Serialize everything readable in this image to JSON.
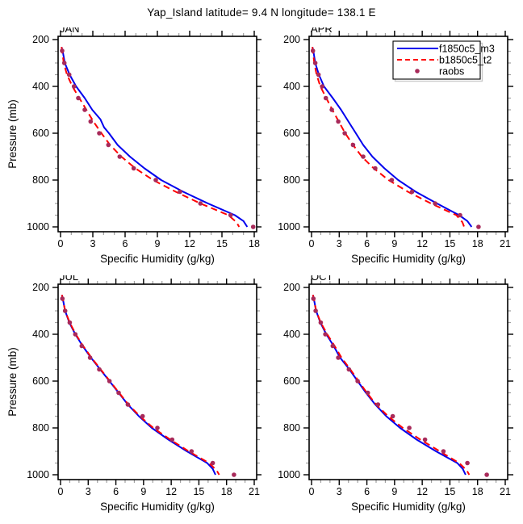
{
  "title": "Yap_Island  latitude= 9.4 N longitude= 138.1 E",
  "colors": {
    "model1": "#0000ee",
    "model2": "#ff0000",
    "obs": "#a82a5a",
    "axis": "#000000",
    "minor_tick": "#a0a0a0",
    "legend_shadow": "#c9c9c9",
    "background": "#ffffff"
  },
  "axes": {
    "xlabel": "Specific Humidity (g/kg)",
    "ylabel": "Pressure (mb)",
    "ylim": [
      200,
      1000
    ],
    "y_inverted": true,
    "yticks": [
      200,
      400,
      600,
      800,
      1000
    ],
    "yminor_step": 50,
    "grid": "off"
  },
  "legend": {
    "panel": "APR",
    "position": "top-right",
    "entries": [
      {
        "label": "f1850c5_m3",
        "style": "solid",
        "color": "#0000ee"
      },
      {
        "label": "b1850c5_t2",
        "style": "dashed",
        "color": "#ff0000"
      },
      {
        "label": "raobs",
        "style": "marker",
        "color": "#a82a5a"
      }
    ]
  },
  "chart_data": [
    {
      "type": "line",
      "month": "JAN",
      "xlim": [
        0,
        18
      ],
      "xticks": [
        0,
        3,
        6,
        9,
        12,
        15,
        18
      ],
      "xminor_step": 1,
      "series": [
        {
          "name": "f1850c5_m3",
          "style": "solid",
          "color": "#0000ee",
          "points": [
            [
              0.1,
              232
            ],
            [
              0.2,
              250
            ],
            [
              0.4,
              300
            ],
            [
              0.85,
              350
            ],
            [
              1.45,
              400
            ],
            [
              2.25,
              450
            ],
            [
              2.95,
              500
            ],
            [
              3.7,
              540
            ],
            [
              4.05,
              575
            ],
            [
              4.5,
              600
            ],
            [
              5.3,
              650
            ],
            [
              6.45,
              700
            ],
            [
              7.8,
              750
            ],
            [
              9.35,
              800
            ],
            [
              11.4,
              850
            ],
            [
              13.7,
              900
            ],
            [
              16.2,
              950
            ],
            [
              17.0,
              975
            ],
            [
              17.35,
              1000
            ]
          ]
        },
        {
          "name": "b1850c5_t2",
          "style": "dashed",
          "color": "#ff0000",
          "points": [
            [
              0.1,
              232
            ],
            [
              0.15,
              250
            ],
            [
              0.3,
              300
            ],
            [
              0.6,
              350
            ],
            [
              1.1,
              400
            ],
            [
              1.75,
              450
            ],
            [
              2.4,
              500
            ],
            [
              3.05,
              550
            ],
            [
              3.8,
              600
            ],
            [
              4.6,
              650
            ],
            [
              5.65,
              700
            ],
            [
              6.95,
              750
            ],
            [
              8.6,
              800
            ],
            [
              10.7,
              850
            ],
            [
              13.0,
              900
            ],
            [
              15.6,
              950
            ],
            [
              16.35,
              980
            ],
            [
              16.6,
              1000
            ]
          ]
        },
        {
          "name": "raobs",
          "style": "marker",
          "color": "#a82a5a",
          "points": [
            [
              0.15,
              248
            ],
            [
              0.35,
              300
            ],
            [
              0.8,
              350
            ],
            [
              1.25,
              400
            ],
            [
              1.65,
              450
            ],
            [
              2.25,
              500
            ],
            [
              2.8,
              550
            ],
            [
              3.6,
              600
            ],
            [
              4.45,
              650
            ],
            [
              5.5,
              700
            ],
            [
              6.8,
              750
            ],
            [
              8.85,
              800
            ],
            [
              11.1,
              850
            ],
            [
              13.0,
              900
            ],
            [
              15.8,
              950
            ],
            [
              17.9,
              1000
            ]
          ]
        }
      ]
    },
    {
      "type": "line",
      "month": "APR",
      "xlim": [
        0,
        21
      ],
      "xticks": [
        0,
        3,
        6,
        9,
        12,
        15,
        18,
        21
      ],
      "xminor_step": 1,
      "series": [
        {
          "name": "f1850c5_m3",
          "style": "solid",
          "color": "#0000ee",
          "points": [
            [
              0.1,
              232
            ],
            [
              0.2,
              250
            ],
            [
              0.4,
              300
            ],
            [
              0.8,
              350
            ],
            [
              1.35,
              400
            ],
            [
              2.3,
              450
            ],
            [
              3.2,
              500
            ],
            [
              4.0,
              550
            ],
            [
              4.8,
              600
            ],
            [
              5.6,
              650
            ],
            [
              6.6,
              700
            ],
            [
              7.9,
              750
            ],
            [
              9.4,
              800
            ],
            [
              11.3,
              850
            ],
            [
              13.6,
              900
            ],
            [
              16.0,
              950
            ],
            [
              16.9,
              975
            ],
            [
              17.35,
              1000
            ]
          ]
        },
        {
          "name": "b1850c5_t2",
          "style": "dashed",
          "color": "#ff0000",
          "points": [
            [
              0.1,
              232
            ],
            [
              0.15,
              250
            ],
            [
              0.3,
              300
            ],
            [
              0.55,
              350
            ],
            [
              0.95,
              400
            ],
            [
              1.6,
              450
            ],
            [
              2.25,
              500
            ],
            [
              2.95,
              550
            ],
            [
              3.65,
              600
            ],
            [
              4.5,
              650
            ],
            [
              5.45,
              700
            ],
            [
              6.75,
              750
            ],
            [
              8.35,
              800
            ],
            [
              10.45,
              850
            ],
            [
              12.95,
              900
            ],
            [
              15.7,
              950
            ],
            [
              16.35,
              980
            ],
            [
              16.55,
              1000
            ]
          ]
        },
        {
          "name": "raobs",
          "style": "marker",
          "color": "#a82a5a",
          "points": [
            [
              0.15,
              248
            ],
            [
              0.4,
              300
            ],
            [
              0.75,
              350
            ],
            [
              1.15,
              400
            ],
            [
              1.55,
              450
            ],
            [
              2.2,
              500
            ],
            [
              2.9,
              550
            ],
            [
              3.6,
              600
            ],
            [
              4.5,
              650
            ],
            [
              5.6,
              700
            ],
            [
              6.9,
              750
            ],
            [
              8.7,
              800
            ],
            [
              10.9,
              850
            ],
            [
              13.4,
              900
            ],
            [
              16.1,
              950
            ],
            [
              18.1,
              1000
            ]
          ]
        }
      ]
    },
    {
      "type": "line",
      "month": "JUL",
      "xlim": [
        0,
        21
      ],
      "xticks": [
        0,
        3,
        6,
        9,
        12,
        15,
        18,
        21
      ],
      "xminor_step": 1,
      "series": [
        {
          "name": "f1850c5_m3",
          "style": "solid",
          "color": "#0000ee",
          "points": [
            [
              0.15,
              232
            ],
            [
              0.25,
              250
            ],
            [
              0.5,
              300
            ],
            [
              0.95,
              350
            ],
            [
              1.6,
              400
            ],
            [
              2.4,
              450
            ],
            [
              3.3,
              500
            ],
            [
              4.3,
              550
            ],
            [
              5.3,
              600
            ],
            [
              6.3,
              650
            ],
            [
              7.3,
              700
            ],
            [
              8.5,
              750
            ],
            [
              9.9,
              800
            ],
            [
              11.7,
              850
            ],
            [
              13.7,
              900
            ],
            [
              15.9,
              950
            ],
            [
              16.5,
              975
            ],
            [
              16.8,
              1000
            ]
          ]
        },
        {
          "name": "b1850c5_t2",
          "style": "dashed",
          "color": "#ff0000",
          "points": [
            [
              0.15,
              232
            ],
            [
              0.25,
              250
            ],
            [
              0.5,
              300
            ],
            [
              1.0,
              350
            ],
            [
              1.65,
              400
            ],
            [
              2.45,
              450
            ],
            [
              3.35,
              500
            ],
            [
              4.35,
              550
            ],
            [
              5.35,
              600
            ],
            [
              6.35,
              650
            ],
            [
              7.35,
              700
            ],
            [
              8.6,
              750
            ],
            [
              10.05,
              800
            ],
            [
              11.9,
              850
            ],
            [
              13.9,
              900
            ],
            [
              16.1,
              950
            ],
            [
              16.9,
              980
            ],
            [
              17.2,
              1000
            ]
          ]
        },
        {
          "name": "raobs",
          "style": "marker",
          "color": "#a82a5a",
          "points": [
            [
              0.2,
              248
            ],
            [
              0.5,
              300
            ],
            [
              1.0,
              350
            ],
            [
              1.6,
              400
            ],
            [
              2.3,
              450
            ],
            [
              3.2,
              500
            ],
            [
              4.2,
              550
            ],
            [
              5.3,
              600
            ],
            [
              6.3,
              650
            ],
            [
              7.3,
              700
            ],
            [
              8.9,
              750
            ],
            [
              10.5,
              800
            ],
            [
              12.1,
              850
            ],
            [
              14.2,
              900
            ],
            [
              16.5,
              950
            ],
            [
              18.8,
              1000
            ]
          ]
        }
      ]
    },
    {
      "type": "line",
      "month": "OCT",
      "xlim": [
        0,
        21
      ],
      "xticks": [
        0,
        3,
        6,
        9,
        12,
        15,
        18,
        21
      ],
      "xminor_step": 1,
      "series": [
        {
          "name": "f1850c5_m3",
          "style": "solid",
          "color": "#0000ee",
          "points": [
            [
              0.15,
              232
            ],
            [
              0.25,
              250
            ],
            [
              0.5,
              300
            ],
            [
              0.95,
              350
            ],
            [
              1.6,
              400
            ],
            [
              2.4,
              450
            ],
            [
              3.1,
              500
            ],
            [
              4.1,
              550
            ],
            [
              5.0,
              600
            ],
            [
              5.9,
              650
            ],
            [
              6.9,
              700
            ],
            [
              8.1,
              750
            ],
            [
              9.6,
              800
            ],
            [
              11.4,
              850
            ],
            [
              13.5,
              900
            ],
            [
              15.8,
              950
            ],
            [
              16.4,
              975
            ],
            [
              16.7,
              1000
            ]
          ]
        },
        {
          "name": "b1850c5_t2",
          "style": "dashed",
          "color": "#ff0000",
          "points": [
            [
              0.15,
              232
            ],
            [
              0.25,
              250
            ],
            [
              0.5,
              300
            ],
            [
              1.0,
              350
            ],
            [
              1.7,
              400
            ],
            [
              2.5,
              450
            ],
            [
              3.25,
              500
            ],
            [
              4.2,
              550
            ],
            [
              5.1,
              600
            ],
            [
              6.0,
              650
            ],
            [
              7.0,
              700
            ],
            [
              8.3,
              750
            ],
            [
              9.9,
              800
            ],
            [
              11.8,
              850
            ],
            [
              13.9,
              900
            ],
            [
              16.0,
              950
            ],
            [
              16.8,
              980
            ],
            [
              17.1,
              1000
            ]
          ]
        },
        {
          "name": "raobs",
          "style": "marker",
          "color": "#a82a5a",
          "points": [
            [
              0.2,
              248
            ],
            [
              0.45,
              300
            ],
            [
              1.0,
              350
            ],
            [
              1.5,
              400
            ],
            [
              2.3,
              450
            ],
            [
              2.9,
              500
            ],
            [
              4.05,
              550
            ],
            [
              5.0,
              600
            ],
            [
              6.1,
              650
            ],
            [
              7.2,
              700
            ],
            [
              8.8,
              750
            ],
            [
              10.6,
              800
            ],
            [
              12.3,
              850
            ],
            [
              14.3,
              900
            ],
            [
              16.9,
              950
            ],
            [
              19.0,
              1000
            ]
          ]
        }
      ]
    }
  ]
}
